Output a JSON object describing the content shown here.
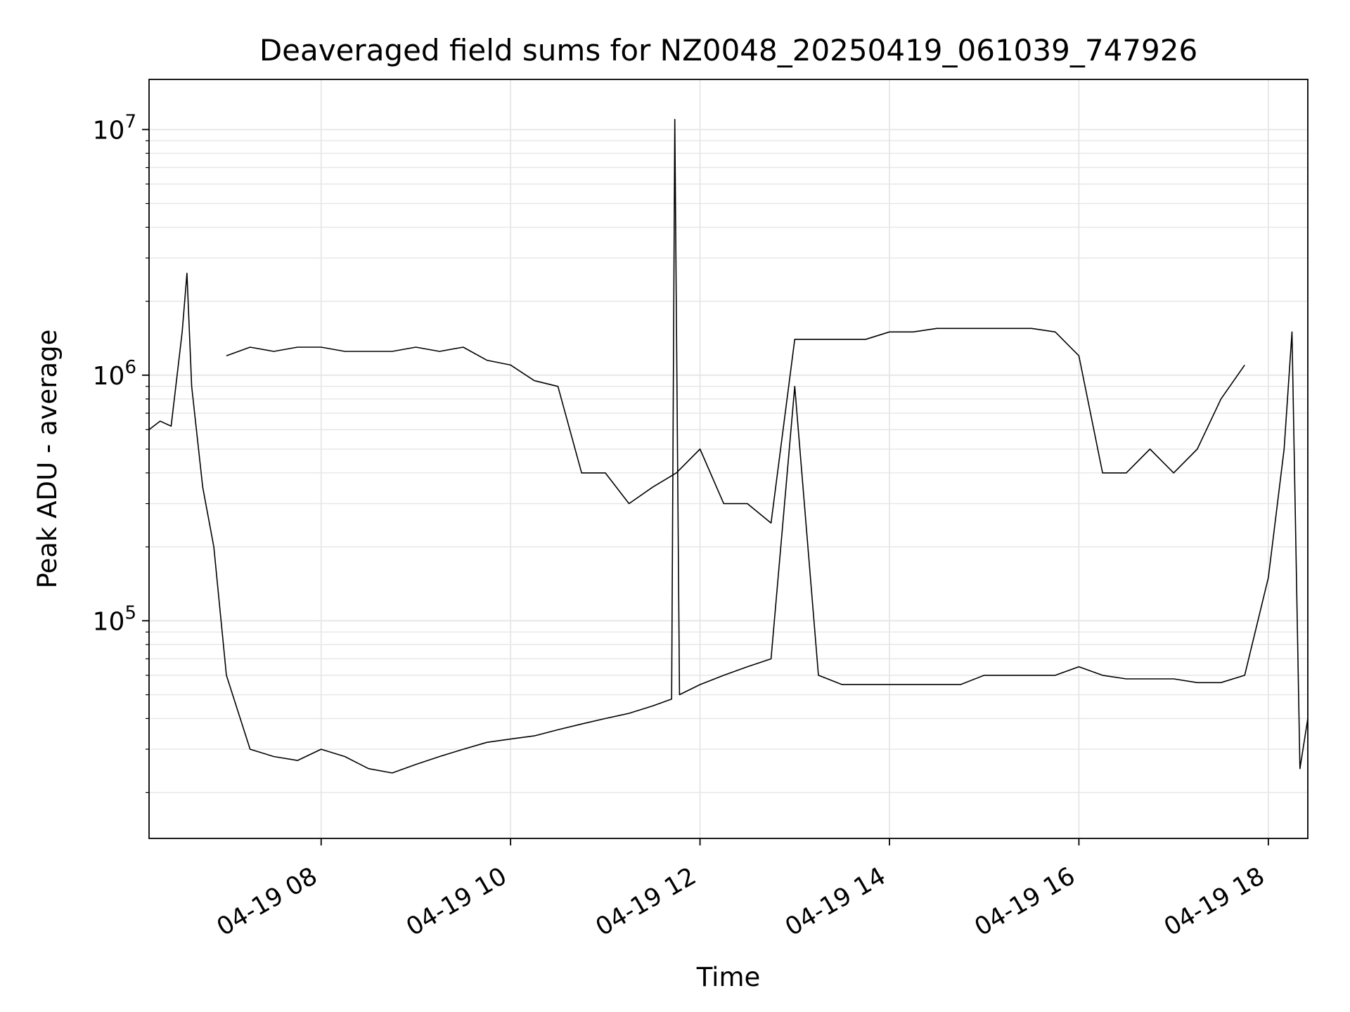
{
  "chart_data": {
    "type": "line",
    "title": "Deaveraged field sums for NZ0048_20250419_061039_747926",
    "xlabel": "Time",
    "ylabel": "Peak ADU - average",
    "y_scale": "log",
    "ylim": [
      13000,
      16000000
    ],
    "xlim": [
      "2025-04-19 06:11",
      "2025-04-19 18:25"
    ],
    "x_ticks": [
      "04-19 08",
      "04-19 10",
      "04-19 12",
      "04-19 14",
      "04-19 16",
      "04-19 18"
    ],
    "x_tick_times": [
      "2025-04-19 08:00",
      "2025-04-19 10:00",
      "2025-04-19 12:00",
      "2025-04-19 14:00",
      "2025-04-19 16:00",
      "2025-04-19 18:00"
    ],
    "y_tick_exponents": [
      "7",
      "6",
      "5"
    ],
    "y_tick_values": [
      10000000,
      1000000,
      100000
    ],
    "grid": true,
    "line_color": "#000000",
    "grid_color": "#e6e6e6",
    "series": [
      {
        "x": [
          "2025-04-19 06:11",
          "2025-04-19 06:18",
          "2025-04-19 06:25",
          "2025-04-19 06:32",
          "2025-04-19 06:35",
          "2025-04-19 06:38",
          "2025-04-19 06:45",
          "2025-04-19 06:52",
          "2025-04-19 07:00",
          "2025-04-19 07:15",
          "2025-04-19 07:30",
          "2025-04-19 07:45",
          "2025-04-19 08:00",
          "2025-04-19 08:15",
          "2025-04-19 08:30",
          "2025-04-19 08:45",
          "2025-04-19 09:00",
          "2025-04-19 09:15",
          "2025-04-19 09:30",
          "2025-04-19 09:45",
          "2025-04-19 10:00",
          "2025-04-19 10:15",
          "2025-04-19 10:30",
          "2025-04-19 10:45",
          "2025-04-19 11:00",
          "2025-04-19 11:15",
          "2025-04-19 11:30",
          "2025-04-19 11:42",
          "2025-04-19 11:44",
          "2025-04-19 11:47",
          "2025-04-19 12:00",
          "2025-04-19 12:15",
          "2025-04-19 12:30",
          "2025-04-19 12:45",
          "2025-04-19 13:00",
          "2025-04-19 13:15",
          "2025-04-19 13:30",
          "2025-04-19 13:45",
          "2025-04-19 14:00",
          "2025-04-19 14:15",
          "2025-04-19 14:30",
          "2025-04-19 14:45",
          "2025-04-19 15:00",
          "2025-04-19 15:15",
          "2025-04-19 15:30",
          "2025-04-19 15:45",
          "2025-04-19 16:00",
          "2025-04-19 16:15",
          "2025-04-19 16:30",
          "2025-04-19 16:45",
          "2025-04-19 17:00",
          "2025-04-19 17:15",
          "2025-04-19 17:30",
          "2025-04-19 17:45",
          "2025-04-19 18:00",
          "2025-04-19 18:10",
          "2025-04-19 18:15",
          "2025-04-19 18:20",
          "2025-04-19 18:25"
        ],
        "y": [
          600000,
          650000,
          620000,
          1500000,
          2600000,
          900000,
          350000,
          200000,
          60000,
          30000,
          28000,
          27000,
          30000,
          28000,
          25000,
          24000,
          26000,
          28000,
          30000,
          32000,
          33000,
          34000,
          36000,
          38000,
          40000,
          42000,
          45000,
          48000,
          11000000,
          50000,
          55000,
          60000,
          65000,
          70000,
          900000,
          60000,
          55000,
          55000,
          55000,
          55000,
          55000,
          55000,
          60000,
          60000,
          60000,
          60000,
          65000,
          60000,
          58000,
          58000,
          58000,
          56000,
          56000,
          60000,
          150000,
          500000,
          1500000,
          25000,
          40000
        ]
      },
      {
        "x": [
          "2025-04-19 07:00",
          "2025-04-19 07:15",
          "2025-04-19 07:30",
          "2025-04-19 07:45",
          "2025-04-19 08:00",
          "2025-04-19 08:15",
          "2025-04-19 08:30",
          "2025-04-19 08:45",
          "2025-04-19 09:00",
          "2025-04-19 09:15",
          "2025-04-19 09:30",
          "2025-04-19 09:45",
          "2025-04-19 10:00",
          "2025-04-19 10:15",
          "2025-04-19 10:30",
          "2025-04-19 10:45",
          "2025-04-19 11:00",
          "2025-04-19 11:15",
          "2025-04-19 11:30",
          "2025-04-19 11:45",
          "2025-04-19 12:00",
          "2025-04-19 12:15",
          "2025-04-19 12:30",
          "2025-04-19 12:45",
          "2025-04-19 13:00",
          "2025-04-19 13:15",
          "2025-04-19 13:30",
          "2025-04-19 13:45",
          "2025-04-19 14:00",
          "2025-04-19 14:15",
          "2025-04-19 14:30",
          "2025-04-19 14:45",
          "2025-04-19 15:00",
          "2025-04-19 15:15",
          "2025-04-19 15:30",
          "2025-04-19 15:45",
          "2025-04-19 16:00",
          "2025-04-19 16:15",
          "2025-04-19 16:30",
          "2025-04-19 16:45",
          "2025-04-19 17:00",
          "2025-04-19 17:15",
          "2025-04-19 17:30",
          "2025-04-19 17:45"
        ],
        "y": [
          1200000,
          1300000,
          1250000,
          1300000,
          1300000,
          1250000,
          1250000,
          1250000,
          1300000,
          1250000,
          1300000,
          1150000,
          1100000,
          950000,
          900000,
          400000,
          400000,
          300000,
          350000,
          400000,
          500000,
          300000,
          300000,
          250000,
          1400000,
          1400000,
          1400000,
          1400000,
          1500000,
          1500000,
          1550000,
          1550000,
          1550000,
          1550000,
          1550000,
          1500000,
          1200000,
          400000,
          400000,
          500000,
          400000,
          500000,
          800000,
          1100000
        ]
      }
    ]
  }
}
